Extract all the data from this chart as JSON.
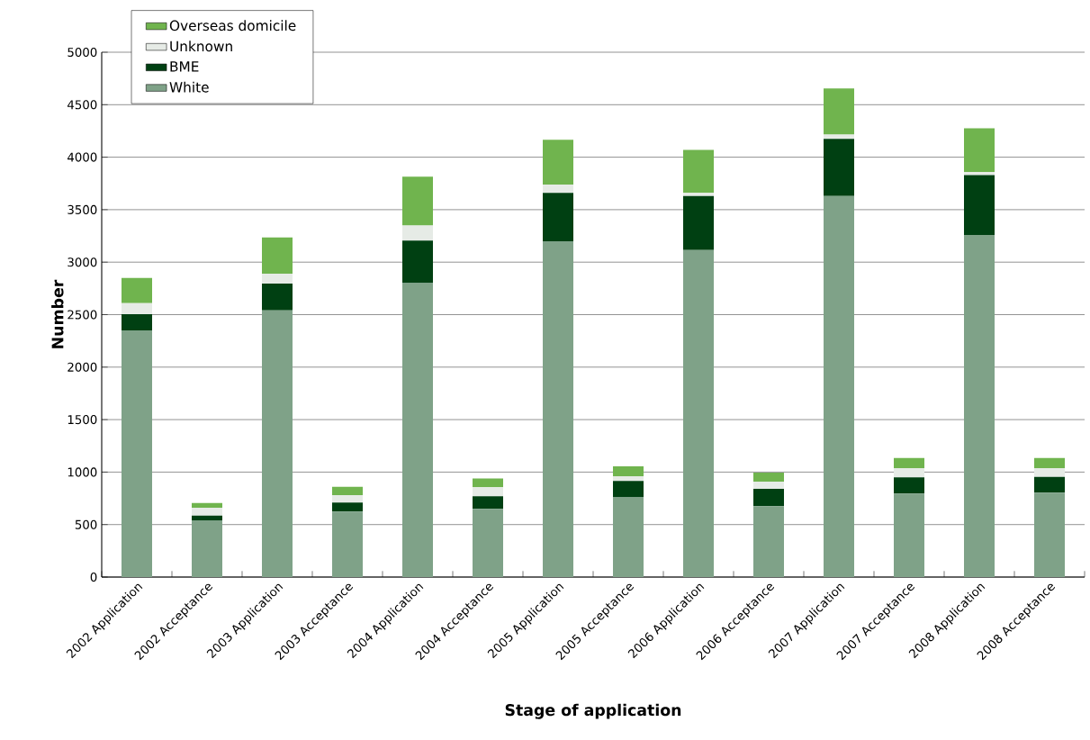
{
  "chart_data": {
    "type": "bar",
    "stacked": true,
    "xlabel": "Stage of application",
    "ylabel": "Number",
    "categories": [
      "2002 Application",
      "2002 Acceptance",
      "2003 Application",
      "2003 Acceptance",
      "2004 Application",
      "2004 Acceptance",
      "2005 Application",
      "2005 Acceptance",
      "2006 Application",
      "2006 Acceptance",
      "2007 Application",
      "2007 Acceptance",
      "2008 Application",
      "2008 Acceptance"
    ],
    "series": [
      {
        "name": "White",
        "color": "#7fa288",
        "values": [
          2350,
          540,
          2540,
          625,
          2800,
          650,
          3195,
          760,
          3115,
          675,
          3630,
          795,
          3260,
          805
        ]
      },
      {
        "name": "BME",
        "color": "#004012",
        "values": [
          155,
          45,
          255,
          85,
          405,
          120,
          465,
          155,
          515,
          165,
          545,
          155,
          570,
          150
        ]
      },
      {
        "name": "Unknown",
        "color": "#e6ebe6",
        "values": [
          105,
          75,
          95,
          70,
          145,
          85,
          80,
          45,
          30,
          70,
          40,
          85,
          30,
          80
        ]
      },
      {
        "name": "Overseas domicile",
        "color": "#70b44e",
        "values": [
          240,
          45,
          345,
          80,
          465,
          85,
          425,
          95,
          410,
          85,
          440,
          100,
          415,
          100
        ]
      }
    ],
    "ylim": [
      0,
      5000
    ],
    "yticks": [
      0,
      500,
      1000,
      1500,
      2000,
      2500,
      3000,
      3500,
      4000,
      4500,
      5000
    ],
    "grid": "y",
    "legend": "top left"
  }
}
